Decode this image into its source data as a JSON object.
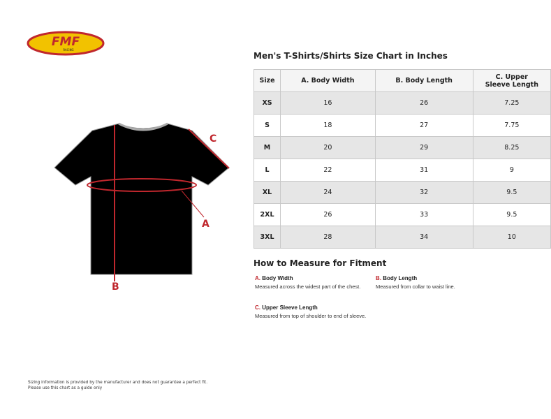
{
  "logo": {
    "text": "FMF",
    "subtext": "RACING"
  },
  "title": "Men's T-Shirts/Shirts Size Chart in Inches",
  "table": {
    "headers": [
      "Size",
      "A. Body Width",
      "B. Body Length",
      "C. Upper Sleeve Length"
    ],
    "rows": [
      [
        "XS",
        "16",
        "26",
        "7.25"
      ],
      [
        "S",
        "18",
        "27",
        "7.75"
      ],
      [
        "M",
        "20",
        "29",
        "8.25"
      ],
      [
        "L",
        "22",
        "31",
        "9"
      ],
      [
        "XL",
        "24",
        "32",
        "9.5"
      ],
      [
        "2XL",
        "26",
        "33",
        "9.5"
      ],
      [
        "3XL",
        "28",
        "34",
        "10"
      ]
    ]
  },
  "diagram": {
    "labels": {
      "a": "A",
      "b": "B",
      "c": "C"
    },
    "accent": "#c0272d"
  },
  "howto": {
    "title": "How to Measure for Fitment",
    "items": [
      {
        "letter": "A.",
        "name": "Body Width",
        "desc": "Measured across the widest part of the chest."
      },
      {
        "letter": "B.",
        "name": "Body Length",
        "desc": "Measured from collar to waist line."
      },
      {
        "letter": "C.",
        "name": "Upper Sleeve Length",
        "desc": "Measured from top of shoulder to end of sleeve."
      }
    ]
  },
  "footer": {
    "line1": "Sizing information is provided by the manufacturer and does not guarantee a perfect fit.",
    "line2": "Please use this chart as a guide only"
  }
}
